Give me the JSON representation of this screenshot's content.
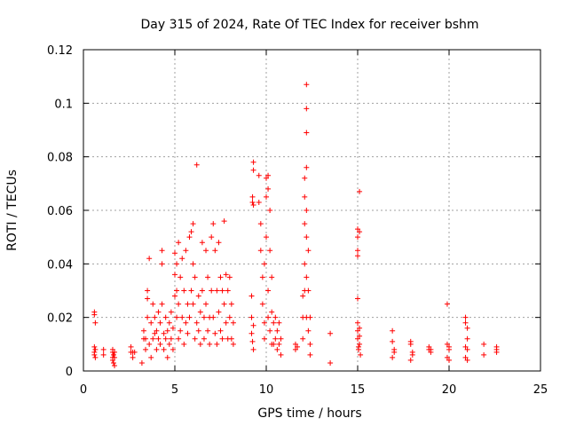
{
  "chart_data": {
    "type": "scatter",
    "title": "Day 315 of 2024, Rate Of TEC Index for receiver bshm",
    "xlabel": "GPS time / hours",
    "ylabel": "ROTI / TECUs",
    "xlim": [
      0,
      25
    ],
    "ylim": [
      0,
      0.12
    ],
    "x_ticks": [
      0,
      5,
      10,
      15,
      20,
      25
    ],
    "y_ticks": [
      0,
      0.02,
      0.04,
      0.06,
      0.08,
      0.1,
      0.12
    ],
    "x_tick_labels": [
      "0",
      "5",
      "10",
      "15",
      "20",
      "25"
    ],
    "y_tick_labels": [
      "0",
      "0.02",
      "0.04",
      "0.06",
      "0.08",
      "0.1",
      "0.12"
    ],
    "grid": true,
    "legend": "none",
    "marker": "+",
    "color": "#ff0000",
    "series": [
      {
        "points": [
          [
            0.6,
            0.022
          ],
          [
            0.6,
            0.021
          ],
          [
            0.65,
            0.018
          ],
          [
            0.6,
            0.009
          ],
          [
            0.65,
            0.008
          ],
          [
            0.6,
            0.007
          ],
          [
            0.65,
            0.005
          ],
          [
            0.6,
            0.006
          ],
          [
            1.1,
            0.008
          ],
          [
            1.1,
            0.006
          ],
          [
            1.6,
            0.008
          ],
          [
            1.6,
            0.007
          ],
          [
            1.65,
            0.006
          ],
          [
            1.7,
            0.005
          ],
          [
            1.6,
            0.004
          ],
          [
            1.65,
            0.003
          ],
          [
            1.7,
            0.002
          ],
          [
            1.6,
            0.005
          ],
          [
            1.7,
            0.007
          ],
          [
            2.6,
            0.009
          ],
          [
            2.6,
            0.007
          ],
          [
            2.7,
            0.007
          ],
          [
            2.8,
            0.007
          ],
          [
            2.7,
            0.005
          ],
          [
            3.2,
            0.003
          ],
          [
            3.3,
            0.012
          ],
          [
            3.3,
            0.015
          ],
          [
            3.4,
            0.008
          ],
          [
            3.4,
            0.012
          ],
          [
            3.5,
            0.02
          ],
          [
            3.5,
            0.027
          ],
          [
            3.5,
            0.03
          ],
          [
            3.6,
            0.042
          ],
          [
            3.6,
            0.01
          ],
          [
            3.7,
            0.018
          ],
          [
            3.7,
            0.005
          ],
          [
            3.8,
            0.025
          ],
          [
            3.8,
            0.012
          ],
          [
            3.9,
            0.014
          ],
          [
            3.9,
            0.02
          ],
          [
            4.0,
            0.008
          ],
          [
            4.0,
            0.015
          ],
          [
            4.1,
            0.022
          ],
          [
            4.1,
            0.012
          ],
          [
            4.2,
            0.01
          ],
          [
            4.2,
            0.018
          ],
          [
            4.3,
            0.025
          ],
          [
            4.3,
            0.045
          ],
          [
            4.3,
            0.04
          ],
          [
            4.4,
            0.014
          ],
          [
            4.4,
            0.008
          ],
          [
            4.5,
            0.02
          ],
          [
            4.5,
            0.012
          ],
          [
            4.6,
            0.015
          ],
          [
            4.6,
            0.005
          ],
          [
            4.7,
            0.018
          ],
          [
            4.7,
            0.01
          ],
          [
            4.8,
            0.022
          ],
          [
            4.8,
            0.012
          ],
          [
            4.9,
            0.016
          ],
          [
            4.9,
            0.008
          ],
          [
            5.0,
            0.028
          ],
          [
            5.0,
            0.036
          ],
          [
            5.0,
            0.044
          ],
          [
            5.1,
            0.04
          ],
          [
            5.1,
            0.03
          ],
          [
            5.1,
            0.02
          ],
          [
            5.2,
            0.048
          ],
          [
            5.2,
            0.025
          ],
          [
            5.2,
            0.012
          ],
          [
            5.3,
            0.035
          ],
          [
            5.3,
            0.015
          ],
          [
            5.4,
            0.042
          ],
          [
            5.4,
            0.02
          ],
          [
            5.5,
            0.03
          ],
          [
            5.5,
            0.01
          ],
          [
            5.6,
            0.018
          ],
          [
            5.6,
            0.045
          ],
          [
            5.7,
            0.025
          ],
          [
            5.7,
            0.014
          ],
          [
            5.8,
            0.05
          ],
          [
            5.8,
            0.02
          ],
          [
            5.9,
            0.052
          ],
          [
            5.9,
            0.03
          ],
          [
            6.0,
            0.055
          ],
          [
            6.0,
            0.04
          ],
          [
            6.0,
            0.025
          ],
          [
            6.1,
            0.012
          ],
          [
            6.1,
            0.035
          ],
          [
            6.2,
            0.018
          ],
          [
            6.2,
            0.077
          ],
          [
            6.3,
            0.028
          ],
          [
            6.3,
            0.015
          ],
          [
            6.4,
            0.022
          ],
          [
            6.4,
            0.01
          ],
          [
            6.5,
            0.048
          ],
          [
            6.5,
            0.03
          ],
          [
            6.6,
            0.02
          ],
          [
            6.6,
            0.012
          ],
          [
            6.7,
            0.045
          ],
          [
            6.7,
            0.025
          ],
          [
            6.8,
            0.015
          ],
          [
            6.8,
            0.035
          ],
          [
            6.9,
            0.02
          ],
          [
            6.9,
            0.01
          ],
          [
            7.0,
            0.05
          ],
          [
            7.0,
            0.03
          ],
          [
            7.1,
            0.055
          ],
          [
            7.1,
            0.02
          ],
          [
            7.2,
            0.045
          ],
          [
            7.2,
            0.014
          ],
          [
            7.3,
            0.03
          ],
          [
            7.3,
            0.01
          ],
          [
            7.4,
            0.048
          ],
          [
            7.4,
            0.022
          ],
          [
            7.5,
            0.035
          ],
          [
            7.5,
            0.015
          ],
          [
            7.6,
            0.03
          ],
          [
            7.6,
            0.012
          ],
          [
            7.7,
            0.025
          ],
          [
            7.7,
            0.056
          ],
          [
            7.8,
            0.036
          ],
          [
            7.8,
            0.018
          ],
          [
            7.9,
            0.03
          ],
          [
            7.9,
            0.012
          ],
          [
            8.0,
            0.035
          ],
          [
            8.0,
            0.02
          ],
          [
            8.1,
            0.025
          ],
          [
            8.1,
            0.012
          ],
          [
            8.2,
            0.018
          ],
          [
            8.2,
            0.01
          ],
          [
            9.2,
            0.028
          ],
          [
            9.2,
            0.02
          ],
          [
            9.2,
            0.014
          ],
          [
            9.25,
            0.011
          ],
          [
            9.3,
            0.008
          ],
          [
            9.3,
            0.017
          ],
          [
            9.6,
            0.073
          ],
          [
            9.6,
            0.063
          ],
          [
            9.7,
            0.055
          ],
          [
            9.7,
            0.045
          ],
          [
            9.8,
            0.035
          ],
          [
            9.8,
            0.025
          ],
          [
            9.9,
            0.018
          ],
          [
            9.9,
            0.012
          ],
          [
            9.9,
            0.04
          ],
          [
            10.0,
            0.072
          ],
          [
            10.0,
            0.065
          ],
          [
            10.0,
            0.05
          ],
          [
            10.1,
            0.073
          ],
          [
            10.1,
            0.068
          ],
          [
            10.1,
            0.03
          ],
          [
            10.1,
            0.02
          ],
          [
            10.2,
            0.06
          ],
          [
            10.2,
            0.045
          ],
          [
            10.2,
            0.015
          ],
          [
            10.3,
            0.035
          ],
          [
            10.3,
            0.022
          ],
          [
            10.3,
            0.01
          ],
          [
            10.4,
            0.018
          ],
          [
            10.4,
            0.01
          ],
          [
            10.5,
            0.02
          ],
          [
            10.5,
            0.012
          ],
          [
            10.6,
            0.015
          ],
          [
            10.6,
            0.008
          ],
          [
            10.7,
            0.018
          ],
          [
            10.7,
            0.01
          ],
          [
            10.8,
            0.012
          ],
          [
            10.8,
            0.006
          ],
          [
            9.3,
            0.078
          ],
          [
            9.3,
            0.075
          ],
          [
            9.25,
            0.065
          ],
          [
            9.25,
            0.063
          ],
          [
            9.3,
            0.062
          ],
          [
            11.6,
            0.01
          ],
          [
            11.6,
            0.008
          ],
          [
            11.7,
            0.009
          ],
          [
            12.0,
            0.028
          ],
          [
            12.0,
            0.02
          ],
          [
            12.0,
            0.012
          ],
          [
            12.1,
            0.065
          ],
          [
            12.1,
            0.072
          ],
          [
            12.1,
            0.055
          ],
          [
            12.1,
            0.04
          ],
          [
            12.1,
            0.03
          ],
          [
            12.2,
            0.107
          ],
          [
            12.2,
            0.098
          ],
          [
            12.2,
            0.089
          ],
          [
            12.2,
            0.076
          ],
          [
            12.2,
            0.06
          ],
          [
            12.2,
            0.05
          ],
          [
            12.2,
            0.035
          ],
          [
            12.2,
            0.02
          ],
          [
            12.3,
            0.045
          ],
          [
            12.3,
            0.03
          ],
          [
            12.3,
            0.015
          ],
          [
            12.4,
            0.02
          ],
          [
            12.4,
            0.01
          ],
          [
            12.4,
            0.006
          ],
          [
            13.5,
            0.014
          ],
          [
            13.5,
            0.003
          ],
          [
            15.0,
            0.053
          ],
          [
            15.0,
            0.05
          ],
          [
            15.0,
            0.045
          ],
          [
            15.0,
            0.043
          ],
          [
            15.0,
            0.027
          ],
          [
            15.0,
            0.018
          ],
          [
            15.0,
            0.012
          ],
          [
            15.05,
            0.008
          ],
          [
            15.1,
            0.067
          ],
          [
            15.1,
            0.052
          ],
          [
            15.1,
            0.016
          ],
          [
            15.1,
            0.01
          ],
          [
            15.15,
            0.006
          ],
          [
            15.0,
            0.015
          ],
          [
            15.1,
            0.013
          ],
          [
            15.05,
            0.009
          ],
          [
            16.9,
            0.015
          ],
          [
            16.9,
            0.011
          ],
          [
            17.0,
            0.008
          ],
          [
            17.0,
            0.007
          ],
          [
            16.9,
            0.005
          ],
          [
            17.9,
            0.011
          ],
          [
            17.9,
            0.01
          ],
          [
            18.0,
            0.007
          ],
          [
            18.0,
            0.006
          ],
          [
            17.9,
            0.004
          ],
          [
            18.9,
            0.009
          ],
          [
            18.9,
            0.008
          ],
          [
            19.0,
            0.008
          ],
          [
            19.0,
            0.007
          ],
          [
            19.9,
            0.025
          ],
          [
            19.9,
            0.01
          ],
          [
            20.0,
            0.009
          ],
          [
            20.0,
            0.008
          ],
          [
            19.9,
            0.005
          ],
          [
            20.0,
            0.004
          ],
          [
            20.9,
            0.02
          ],
          [
            20.9,
            0.018
          ],
          [
            21.0,
            0.016
          ],
          [
            21.0,
            0.012
          ],
          [
            20.9,
            0.009
          ],
          [
            21.0,
            0.008
          ],
          [
            20.9,
            0.005
          ],
          [
            21.0,
            0.004
          ],
          [
            21.9,
            0.01
          ],
          [
            21.9,
            0.006
          ],
          [
            22.6,
            0.009
          ],
          [
            22.6,
            0.008
          ],
          [
            22.6,
            0.007
          ]
        ]
      }
    ]
  }
}
